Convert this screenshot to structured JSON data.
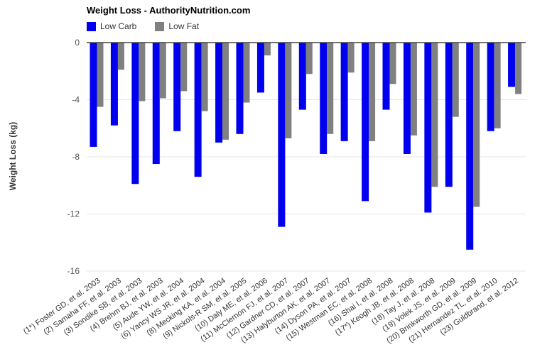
{
  "title": "Weight Loss - AuthorityNutrition.com",
  "legend": {
    "items": [
      {
        "label": "Low Carb",
        "color": "#0000ee"
      },
      {
        "label": "Low Fat",
        "color": "#808080"
      }
    ]
  },
  "chart_data": {
    "type": "bar",
    "title": "Weight Loss - AuthorityNutrition.com",
    "xlabel": "",
    "ylabel": "Weight Loss (kg)",
    "ylim": [
      -16,
      0
    ],
    "yticks": [
      0,
      -4,
      -8,
      -12,
      -16
    ],
    "grid": true,
    "legend_position": "top-left",
    "categories": [
      "(1*) Foster GD, et al. 2003",
      "(2) Samaha FF, et al. 2003",
      "(3) Sondike SB, et al. 2003",
      "(4) Brehm BJ, et al. 2003",
      "(5) Aude YW, et al. 2004",
      "(6) Yancy WS JR, et al. 2004",
      "(8) Mecking KA, et al. 2004",
      "(9) Nickols-R SM, et al. 2005",
      "(10) Daly ME, et al. 2006",
      "(11) McClernon FJ, et al. 2007",
      "(12) Gardner CD, et al. 2007",
      "(13) Halyburton AK, et al. 2007",
      "(14) Dyson PA, et al. 2007",
      "(15) Westman EC, et al. 2008",
      "(16) Shai I, et al. 2008",
      "(17*) Keogh JB, et al. 2008",
      "(18) Tay J, et al. 2008",
      "(19) Volek JS, et al. 2009",
      "(20) Brinkworth GD, et al. 2009",
      "(21) Hernandez TL, et al. 2010",
      "(23) Guldbrand, et al. 2012"
    ],
    "series": [
      {
        "name": "Low Carb",
        "color": "#0000ee",
        "values": [
          -7.3,
          -5.8,
          -9.9,
          -8.5,
          -6.2,
          -9.4,
          -7.0,
          -6.4,
          -3.5,
          -12.9,
          -4.7,
          -7.8,
          -6.9,
          -11.1,
          -4.7,
          -7.8,
          -11.9,
          -10.1,
          -14.5,
          -6.2,
          -3.1
        ]
      },
      {
        "name": "Low Fat",
        "color": "#808080",
        "values": [
          -4.5,
          -1.9,
          -4.1,
          -3.9,
          -3.4,
          -4.8,
          -6.8,
          -4.2,
          -0.9,
          -6.7,
          -2.2,
          -6.4,
          -2.1,
          -6.9,
          -2.9,
          -6.5,
          -10.1,
          -5.2,
          -11.5,
          -6.0,
          -3.6
        ]
      }
    ],
    "axis_colors": {
      "gridline": "#e6e6e6",
      "zero_line": "#444444",
      "tick_text": "#555555",
      "category_text": "#333333"
    }
  }
}
